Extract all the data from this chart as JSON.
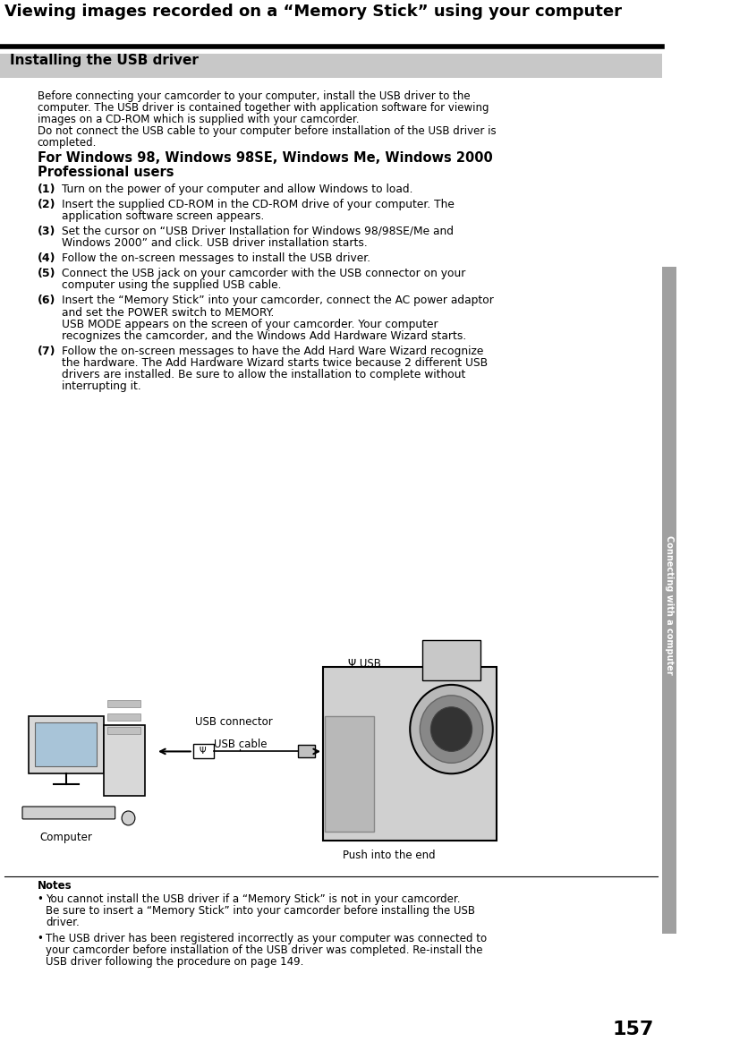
{
  "page_number": "157",
  "sidebar_text": "Connecting with a computer",
  "main_title": "Viewing images recorded on a “Memory Stick” using your computer",
  "section_title": "Installing the USB driver",
  "intro_text": "Before connecting your camcorder to your computer, install the USB driver to the\ncomputer. The USB driver is contained together with application software for viewing\nimages on a CD-ROM which is supplied with your camcorder.\nDo not connect the USB cable to your computer before installation of the USB driver is\ncompleted.",
  "windows_heading": "For Windows 98, Windows 98SE, Windows Me, Windows 2000\nProfessional users",
  "steps": [
    {
      "num": "(1)",
      "text": "Turn on the power of your computer and allow Windows to load."
    },
    {
      "num": "(2)",
      "text": "Insert the supplied CD-ROM in the CD-ROM drive of your computer. The\napplication software screen appears."
    },
    {
      "num": "(3)",
      "text": "Set the cursor on “USB Driver Installation for Windows 98/98SE/Me and\nWindows 2000” and click. USB driver installation starts."
    },
    {
      "num": "(4)",
      "text": "Follow the on-screen messages to install the USB driver."
    },
    {
      "num": "(5)",
      "text": "Connect the USB jack on your camcorder with the USB connector on your\ncomputer using the supplied USB cable."
    },
    {
      "num": "(6)",
      "text": "Insert the “Memory Stick” into your camcorder, connect the AC power adaptor\nand set the POWER switch to MEMORY.\nUSB MODE appears on the screen of your camcorder. Your computer\nrecognizes the camcorder, and the Windows Add Hardware Wizard starts."
    },
    {
      "num": "(7)",
      "text": "Follow the on-screen messages to have the Add Hard Ware Wizard recognize\nthe hardware. The Add Hardware Wizard starts twice because 2 different USB\ndrivers are installed. Be sure to allow the installation to complete without\ninterrupting it."
    }
  ],
  "diagram_labels": {
    "usb_symbol": "Ψ USB",
    "usb_connector": "USB connector",
    "usb_cable": "USB cable",
    "push_into_end": "Push into the end",
    "computer": "Computer"
  },
  "notes_title": "Notes",
  "notes": [
    "You cannot install the USB driver if a “Memory Stick” is not in your camcorder.\nBe sure to insert a “Memory Stick” into your camcorder before installing the USB\ndriver.",
    "The USB driver has been registered incorrectly as your computer was connected to\nyour camcorder before installation of the USB driver was completed. Re-install the\nUSB driver following the procedure on page 149."
  ],
  "bg_color": "#ffffff",
  "section_bg": "#c8c8c8",
  "text_color": "#000000",
  "sidebar_bg": "#a0a0a0"
}
